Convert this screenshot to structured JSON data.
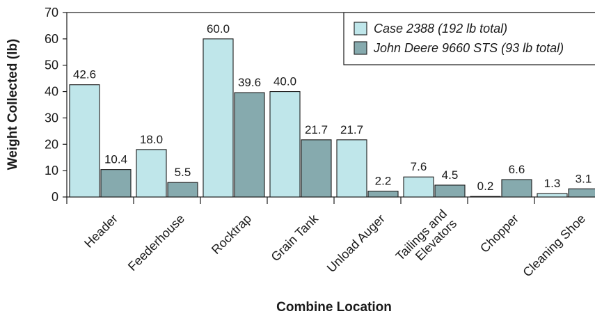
{
  "chart_data": {
    "type": "bar",
    "categories": [
      "Header",
      "Feederhouse",
      "Rocktrap",
      "Grain Tank",
      "Unload Auger",
      "Tailings and Elevators",
      "Chopper",
      "Cleaning Shoe"
    ],
    "category_label_lines": [
      [
        "Header"
      ],
      [
        "Feederhouse"
      ],
      [
        "Rocktrap"
      ],
      [
        "Grain Tank"
      ],
      [
        "Unload Auger"
      ],
      [
        "Tailings and",
        "Elevators"
      ],
      [
        "Chopper"
      ],
      [
        "Cleaning Shoe"
      ]
    ],
    "series": [
      {
        "name": "Case 2388 (192 lb total)",
        "color": "#bfe6ea",
        "values": [
          42.6,
          18.0,
          60.0,
          40.0,
          21.7,
          7.6,
          0.2,
          1.3
        ],
        "labels": [
          "42.6",
          "18.0",
          "60.0",
          "40.0",
          "21.7",
          "7.6",
          "0.2",
          "1.3"
        ]
      },
      {
        "name": "John Deere 9660 STS (93 lb total)",
        "color": "#86aaae",
        "values": [
          10.4,
          5.5,
          39.6,
          21.7,
          2.2,
          4.5,
          6.6,
          3.1
        ],
        "labels": [
          "10.4",
          "5.5",
          "39.6",
          "21.7",
          "2.2",
          "4.5",
          "6.6",
          "3.1"
        ]
      }
    ],
    "title": "",
    "xlabel": "Combine Location",
    "ylabel": "Weight Collected (lb)",
    "ylim": [
      0,
      70
    ],
    "yticks": [
      0,
      10,
      20,
      30,
      40,
      50,
      60,
      70
    ],
    "grid": false,
    "legend_position": "top-right"
  }
}
